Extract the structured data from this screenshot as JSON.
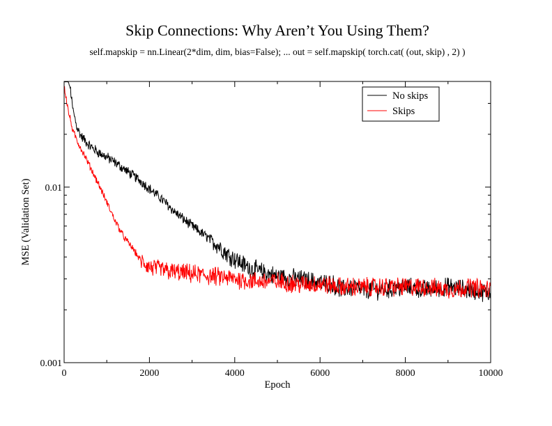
{
  "chart_data": {
    "type": "line",
    "title": "Skip Connections: Why Aren’t You Using Them?",
    "subtitle": "self.mapskip = nn.Linear(2*dim,  dim, bias=False);  ... out = self.mapskip( torch.cat(  (out, skip) , 2) )",
    "xlabel": "Epoch",
    "ylabel": "MSE (Validation Set)",
    "xlim": [
      0,
      10000
    ],
    "ylim": [
      0.001,
      0.04
    ],
    "yscale": "log",
    "grid": false,
    "legend_position": "top-right",
    "x_ticks": [
      {
        "value": 0,
        "label": "0"
      },
      {
        "value": 2000,
        "label": "2000"
      },
      {
        "value": 4000,
        "label": "4000"
      },
      {
        "value": 6000,
        "label": "6000"
      },
      {
        "value": 8000,
        "label": "8000"
      },
      {
        "value": 10000,
        "label": "10000"
      }
    ],
    "y_ticks": [
      {
        "value": 0.001,
        "label": "0.001"
      },
      {
        "value": 0.01,
        "label": "0.01"
      }
    ],
    "series": [
      {
        "name": "No skips",
        "color": "#000000",
        "x": [
          0,
          100,
          150,
          200,
          300,
          400,
          600,
          800,
          1000,
          1200,
          1500,
          1800,
          2000,
          2300,
          2600,
          3000,
          3300,
          3600,
          3800,
          4000,
          4300,
          4600,
          5000,
          5500,
          6000,
          6300,
          6500,
          6800,
          7000,
          7500,
          8000,
          8500,
          9000,
          9500,
          10000
        ],
        "y": [
          0.0398,
          0.0398,
          0.036,
          0.028,
          0.022,
          0.0195,
          0.0172,
          0.0158,
          0.0148,
          0.0138,
          0.0122,
          0.0108,
          0.0098,
          0.0085,
          0.0072,
          0.006,
          0.0053,
          0.0047,
          0.0042,
          0.0039,
          0.0035,
          0.0033,
          0.0031,
          0.003,
          0.00285,
          0.0028,
          0.0026,
          0.0027,
          0.0026,
          0.0026,
          0.0027,
          0.0026,
          0.0027,
          0.0026,
          0.0025
        ]
      },
      {
        "name": "Skips",
        "color": "#ff0000",
        "x": [
          0,
          50,
          100,
          150,
          200,
          300,
          400,
          500,
          600,
          800,
          1000,
          1200,
          1400,
          1600,
          1800,
          2000,
          2500,
          3000,
          3500,
          4000,
          4500,
          5000,
          5500,
          6000,
          6500,
          7000,
          7500,
          8000,
          8500,
          9000,
          9500,
          10000
        ],
        "y": [
          0.038,
          0.032,
          0.027,
          0.024,
          0.021,
          0.0185,
          0.0165,
          0.0148,
          0.0132,
          0.0105,
          0.0082,
          0.0064,
          0.0052,
          0.0045,
          0.0038,
          0.0035,
          0.0033,
          0.0032,
          0.0031,
          0.003,
          0.0029,
          0.0029,
          0.0028,
          0.0028,
          0.0027,
          0.0027,
          0.0027,
          0.0027,
          0.0027,
          0.0026,
          0.0027,
          0.0026
        ]
      }
    ]
  }
}
